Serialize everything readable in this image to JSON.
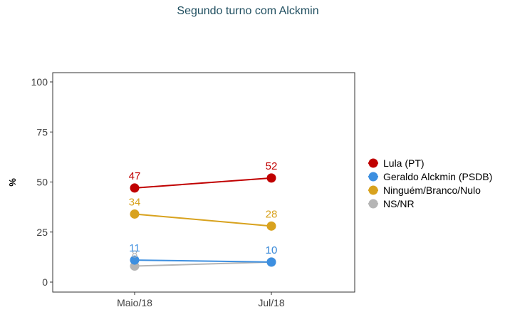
{
  "chart_data": {
    "type": "line",
    "title": "Segundo turno com Alckmin",
    "xlabel": "",
    "ylabel": "%",
    "categories": [
      "Maio/18",
      "Jul/18"
    ],
    "ylim": [
      0,
      100
    ],
    "yticks": [
      "0",
      "25",
      "50",
      "75",
      "100"
    ],
    "grid": false,
    "legend_position": "right",
    "series": [
      {
        "name": "Lula (PT)",
        "values": [
          47,
          52
        ],
        "color": "#c00000"
      },
      {
        "name": "Geraldo Alckmin (PSDB)",
        "values": [
          11,
          10
        ],
        "color": "#3d8fe0"
      },
      {
        "name": "Ninguém/Branco/Nulo",
        "values": [
          34,
          28
        ],
        "color": "#d8a21e"
      },
      {
        "name": "NS/NR",
        "values": [
          8,
          10
        ],
        "color": "#b5b5b5"
      }
    ]
  }
}
